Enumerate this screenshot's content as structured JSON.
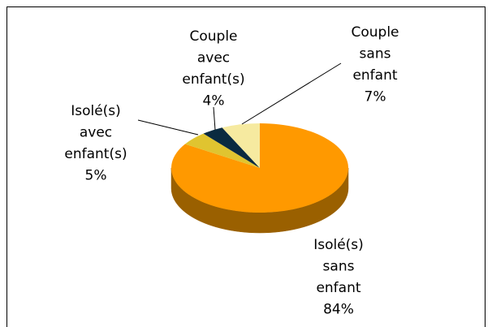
{
  "chart_data": {
    "type": "pie",
    "categories": [
      "Isolé(s) sans enfant",
      "Isolé(s) avec enfant(s)",
      "Couple avec enfant(s)",
      "Couple sans enfant"
    ],
    "values": [
      84,
      5,
      4,
      7
    ],
    "value_labels": [
      "84%",
      "5%",
      "4%",
      "7%"
    ],
    "colors": [
      "#FF9900",
      "#E0C430",
      "#0A2A40",
      "#F6EAA0"
    ],
    "side_colors": [
      "#9A6000",
      "#8A7818",
      "#051522",
      "#A89A60"
    ]
  }
}
